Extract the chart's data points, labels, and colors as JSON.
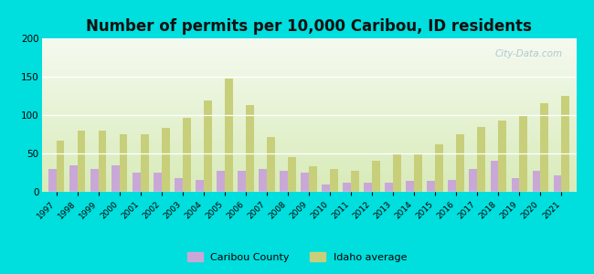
{
  "title": "Number of permits per 10,000 Caribou, ID residents",
  "years": [
    1997,
    1998,
    1999,
    2000,
    2001,
    2002,
    2003,
    2004,
    2005,
    2006,
    2007,
    2008,
    2009,
    2010,
    2011,
    2012,
    2013,
    2014,
    2015,
    2016,
    2017,
    2018,
    2019,
    2020,
    2021
  ],
  "caribou_county": [
    30,
    35,
    30,
    35,
    25,
    25,
    18,
    15,
    27,
    27,
    30,
    27,
    25,
    10,
    12,
    12,
    12,
    14,
    14,
    16,
    30,
    40,
    18,
    27,
    22
  ],
  "idaho_average": [
    67,
    80,
    80,
    75,
    75,
    83,
    97,
    119,
    148,
    113,
    72,
    45,
    33,
    30,
    27,
    40,
    50,
    50,
    62,
    75,
    85,
    93,
    100,
    115,
    125
  ],
  "caribou_color": "#c9a8d8",
  "idaho_color": "#c8cf7a",
  "outer_bg": "#00dede",
  "plot_bg_top": "#f5faf0",
  "plot_bg_bottom": "#d8ebb8",
  "ylim": [
    0,
    200
  ],
  "yticks": [
    0,
    50,
    100,
    150,
    200
  ],
  "legend_caribou": "Caribou County",
  "legend_idaho": "Idaho average",
  "bar_width": 0.38,
  "title_fontsize": 12,
  "watermark": "City-Data.com"
}
